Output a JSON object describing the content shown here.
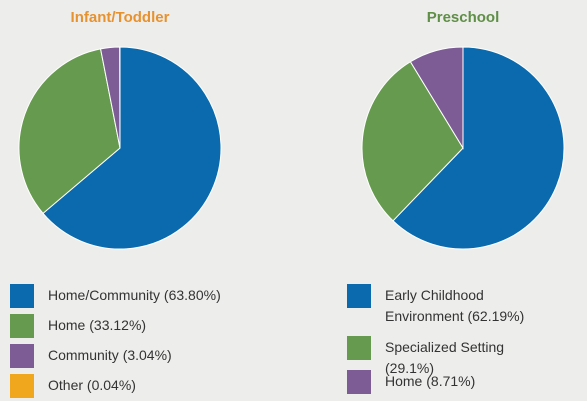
{
  "chart_data": [
    {
      "type": "pie",
      "title": "Infant/Toddler",
      "title_color": "#e8922f",
      "categories": [
        "Home/Community",
        "Home",
        "Community",
        "Other"
      ],
      "values": [
        63.8,
        33.12,
        3.04,
        0.04
      ],
      "value_labels": [
        "(63.80%)",
        "(33.12%)",
        "(3.04%)",
        "(0.04%)"
      ],
      "colors": [
        "#0a6aad",
        "#669a4e",
        "#7d5c96",
        "#f0a71e"
      ]
    },
    {
      "type": "pie",
      "title": "Preschool",
      "title_color": "#5f8f46",
      "categories": [
        "Early Childhood Environment",
        "Specialized Setting",
        "Home"
      ],
      "values": [
        62.19,
        29.1,
        8.71
      ],
      "value_labels": [
        "(62.19%)",
        "(29.1%)",
        "(8.71%)"
      ],
      "colors": [
        "#0a6aad",
        "#669a4e",
        "#7d5c96"
      ]
    }
  ]
}
